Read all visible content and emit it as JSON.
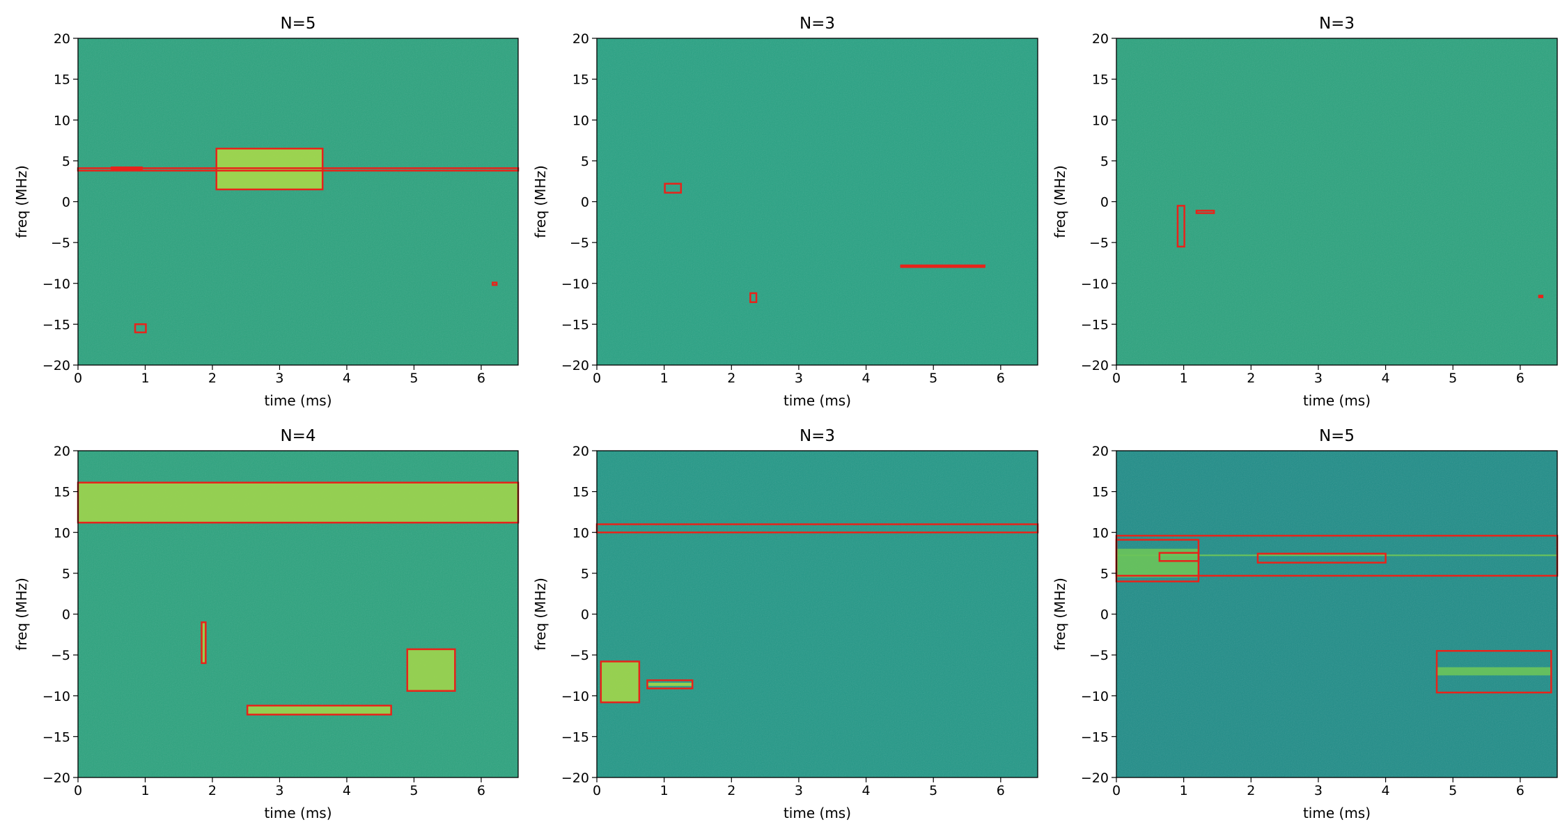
{
  "chart_data": [
    {
      "type": "spectrogram",
      "title": "N=5",
      "xlabel": "time (ms)",
      "ylabel": "freq (MHz)",
      "xlim": [
        0,
        6.55
      ],
      "ylim": [
        -20,
        20
      ],
      "xticks": [
        0,
        1,
        2,
        3,
        4,
        5,
        6
      ],
      "yticks": [
        {
          "value": -20,
          "label": "−20"
        },
        {
          "value": -15,
          "label": "−15"
        },
        {
          "value": -10,
          "label": "−10"
        },
        {
          "value": -5,
          "label": "−5"
        },
        0,
        5,
        10,
        15,
        20
      ],
      "background_color": "#2ba37e",
      "signal_color": "#a6d84a",
      "box_color": "#e8231a",
      "signals": [
        {
          "x": [
            2.06,
            3.64
          ],
          "y": [
            1.5,
            6.5
          ]
        }
      ],
      "boxes": [
        {
          "x": [
            0,
            6.55
          ],
          "y": [
            3.8,
            4.1
          ]
        },
        {
          "x": [
            2.06,
            3.64
          ],
          "y": [
            1.5,
            6.5
          ]
        },
        {
          "x": [
            0.85,
            1.01
          ],
          "y": [
            -16,
            -15
          ]
        },
        {
          "x": [
            6.17,
            6.23
          ],
          "y": [
            -10.2,
            -9.9
          ]
        },
        {
          "x": [
            0.5,
            0.95
          ],
          "y": [
            3.9,
            4.2
          ]
        }
      ]
    },
    {
      "type": "spectrogram",
      "title": "N=3",
      "xlabel": "time (ms)",
      "ylabel": "freq (MHz)",
      "xlim": [
        0,
        6.55
      ],
      "ylim": [
        -20,
        20
      ],
      "xticks": [
        0,
        1,
        2,
        3,
        4,
        5,
        6
      ],
      "yticks": [
        {
          "value": -20,
          "label": "−20"
        },
        {
          "value": -15,
          "label": "−15"
        },
        {
          "value": -10,
          "label": "−10"
        },
        {
          "value": -5,
          "label": "−5"
        },
        0,
        5,
        10,
        15,
        20
      ],
      "background_color": "#27a283",
      "signal_color": "#a6d84a",
      "box_color": "#e8231a",
      "signals": [],
      "boxes": [
        {
          "x": [
            1.01,
            1.25
          ],
          "y": [
            1.1,
            2.2
          ]
        },
        {
          "x": [
            2.28,
            2.37
          ],
          "y": [
            -12.3,
            -11.2
          ]
        },
        {
          "x": [
            4.52,
            5.76
          ],
          "y": [
            -8,
            -7.8
          ]
        }
      ]
    },
    {
      "type": "spectrogram",
      "title": "N=3",
      "xlabel": "time (ms)",
      "ylabel": "freq (MHz)",
      "xlim": [
        0,
        6.55
      ],
      "ylim": [
        -20,
        20
      ],
      "xticks": [
        0,
        1,
        2,
        3,
        4,
        5,
        6
      ],
      "yticks": [
        {
          "value": -20,
          "label": "−20"
        },
        {
          "value": -15,
          "label": "−15"
        },
        {
          "value": -10,
          "label": "−10"
        },
        {
          "value": -5,
          "label": "−5"
        },
        0,
        5,
        10,
        15,
        20
      ],
      "background_color": "#2ba37e",
      "signal_color": "#a6d84a",
      "box_color": "#e8231a",
      "signals": [],
      "boxes": [
        {
          "x": [
            0.91,
            1.01
          ],
          "y": [
            -5.5,
            -0.5
          ]
        },
        {
          "x": [
            1.19,
            1.45
          ],
          "y": [
            -1.4,
            -1.1
          ]
        },
        {
          "x": [
            6.28,
            6.33
          ],
          "y": [
            -11.7,
            -11.5
          ]
        }
      ]
    },
    {
      "type": "spectrogram",
      "title": "N=4",
      "xlabel": "time (ms)",
      "ylabel": "freq (MHz)",
      "xlim": [
        0,
        6.55
      ],
      "ylim": [
        -20,
        20
      ],
      "xticks": [
        0,
        1,
        2,
        3,
        4,
        5,
        6
      ],
      "yticks": [
        {
          "value": -20,
          "label": "−20"
        },
        {
          "value": -15,
          "label": "−15"
        },
        {
          "value": -10,
          "label": "−10"
        },
        {
          "value": -5,
          "label": "−5"
        },
        0,
        5,
        10,
        15,
        20
      ],
      "background_color": "#2ba37e",
      "signal_color": "#9fd44c",
      "box_color": "#e8231a",
      "signals": [
        {
          "x": [
            0,
            6.55
          ],
          "y": [
            11.2,
            16.1
          ]
        },
        {
          "x": [
            2.52,
            4.66
          ],
          "y": [
            -12.3,
            -11.2
          ]
        },
        {
          "x": [
            4.9,
            5.61
          ],
          "y": [
            -9.4,
            -4.3
          ]
        },
        {
          "x": [
            1.84,
            1.9
          ],
          "y": [
            -6,
            -1
          ]
        }
      ],
      "boxes": [
        {
          "x": [
            0,
            6.55
          ],
          "y": [
            11.2,
            16.1
          ]
        },
        {
          "x": [
            1.84,
            1.9
          ],
          "y": [
            -6,
            -1
          ]
        },
        {
          "x": [
            2.52,
            4.66
          ],
          "y": [
            -12.3,
            -11.2
          ]
        },
        {
          "x": [
            4.9,
            5.61
          ],
          "y": [
            -9.4,
            -4.3
          ]
        }
      ]
    },
    {
      "type": "spectrogram",
      "title": "N=3",
      "xlabel": "time (ms)",
      "ylabel": "freq (MHz)",
      "xlim": [
        0,
        6.55
      ],
      "ylim": [
        -20,
        20
      ],
      "xticks": [
        0,
        1,
        2,
        3,
        4,
        5,
        6
      ],
      "yticks": [
        {
          "value": -20,
          "label": "−20"
        },
        {
          "value": -15,
          "label": "−15"
        },
        {
          "value": -10,
          "label": "−10"
        },
        {
          "value": -5,
          "label": "−5"
        },
        0,
        5,
        10,
        15,
        20
      ],
      "background_color": "#229887",
      "signal_color": "#a2d64a",
      "box_color": "#e8231a",
      "signals": [
        {
          "x": [
            0.06,
            0.63
          ],
          "y": [
            -10.8,
            -5.8
          ]
        },
        {
          "x": [
            0.75,
            1.42
          ],
          "y": [
            -8.8,
            -8.4
          ]
        }
      ],
      "boxes": [
        {
          "x": [
            0,
            6.55
          ],
          "y": [
            10,
            11
          ]
        },
        {
          "x": [
            0.06,
            0.63
          ],
          "y": [
            -10.8,
            -5.8
          ]
        },
        {
          "x": [
            0.75,
            1.42
          ],
          "y": [
            -9.1,
            -8.1
          ]
        }
      ]
    },
    {
      "type": "spectrogram",
      "title": "N=5",
      "xlabel": "time (ms)",
      "ylabel": "freq (MHz)",
      "xlim": [
        0,
        6.55
      ],
      "ylim": [
        -20,
        20
      ],
      "xticks": [
        0,
        1,
        2,
        3,
        4,
        5,
        6
      ],
      "yticks": [
        {
          "value": -20,
          "label": "−20"
        },
        {
          "value": -15,
          "label": "−15"
        },
        {
          "value": -10,
          "label": "−10"
        },
        {
          "value": -5,
          "label": "−5"
        },
        0,
        5,
        10,
        15,
        20
      ],
      "background_color": "#1f8d88",
      "signal_color": "#6cc45a",
      "box_color": "#e8231a",
      "signals": [
        {
          "x": [
            0,
            1.22
          ],
          "y": [
            4.5,
            8
          ]
        },
        {
          "x": [
            4.76,
            6.46
          ],
          "y": [
            -7.5,
            -6.5
          ]
        },
        {
          "x": [
            0,
            6.55
          ],
          "y": [
            7.1,
            7.3
          ]
        }
      ],
      "boxes": [
        {
          "x": [
            0,
            6.55
          ],
          "y": [
            4.7,
            9.6
          ]
        },
        {
          "x": [
            0,
            1.22
          ],
          "y": [
            4,
            9.1
          ]
        },
        {
          "x": [
            0.64,
            1.22
          ],
          "y": [
            6.5,
            7.5
          ]
        },
        {
          "x": [
            2.1,
            4
          ],
          "y": [
            6.3,
            7.4
          ]
        },
        {
          "x": [
            4.76,
            6.46
          ],
          "y": [
            -9.6,
            -4.5
          ]
        }
      ]
    }
  ]
}
